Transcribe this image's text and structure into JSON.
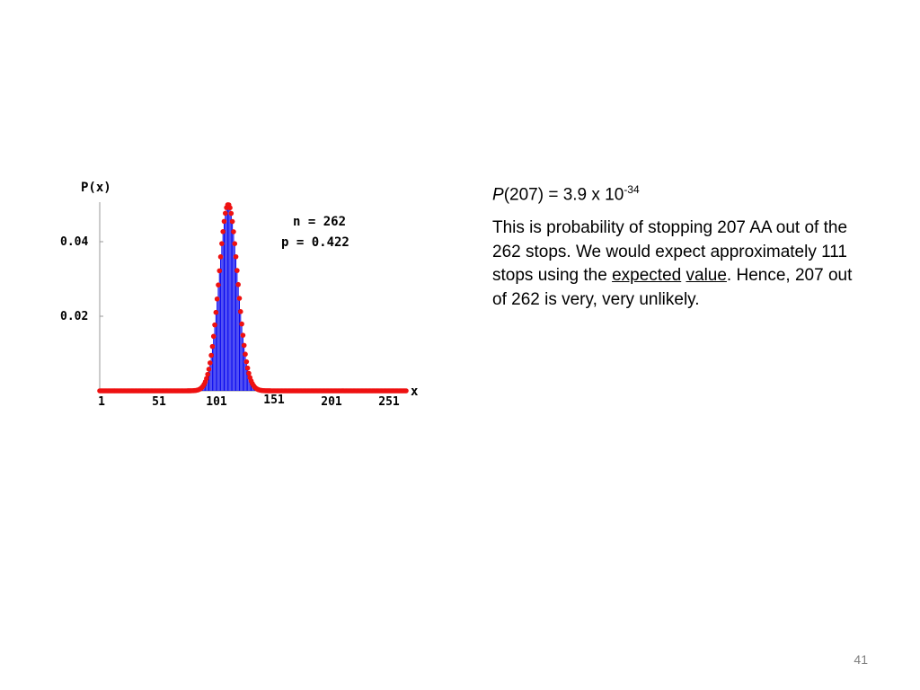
{
  "slide": {
    "page_number": "41"
  },
  "equation": {
    "p_symbol": "P",
    "argument": "(207) = 3.9 x 10",
    "exponent": "-34"
  },
  "explanation": {
    "part1": "This is probability of stopping 207 AA out of the 262 stops.  We would expect approximately 111 stops using the ",
    "link1": "expected",
    "space": " ",
    "link2": "value",
    "part2": ".  Hence, 207 out of 262 is very, very unlikely."
  },
  "chart_data": {
    "type": "bar",
    "title": "",
    "ylabel": "P(x)",
    "xlabel": "x",
    "annotation_n": "n = 262",
    "annotation_p": "p = 0.422",
    "n": 262,
    "p": 0.422,
    "x_ticks": [
      "1",
      "51",
      "101",
      "151",
      "201",
      "251"
    ],
    "y_ticks": [
      "0.02",
      "0.04"
    ],
    "xlim": [
      1,
      262
    ],
    "ylim": [
      0,
      0.05
    ],
    "peak": {
      "x": 111,
      "y": 0.0496
    },
    "colors": {
      "bars": "#0000ee",
      "points": "#ee1111",
      "axis": "#999999"
    }
  }
}
